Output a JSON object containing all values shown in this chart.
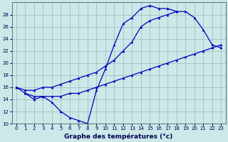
{
  "xlabel": "Graphe des températures (°c)",
  "bg_color": "#cce8e8",
  "line_color": "#0000bb",
  "grid_color": "#99bbbb",
  "ylim": [
    10,
    30
  ],
  "yticks": [
    10,
    12,
    14,
    16,
    18,
    20,
    22,
    24,
    26,
    28
  ],
  "xlim": [
    -0.5,
    23.5
  ],
  "line1_x": [
    0,
    1,
    2,
    3,
    4,
    5,
    6,
    7,
    8,
    9,
    10,
    11,
    12,
    13,
    14,
    15,
    16,
    17,
    18
  ],
  "line1_y": [
    16.0,
    15.0,
    14.0,
    14.5,
    13.5,
    12.0,
    11.0,
    10.5,
    10.0,
    15.5,
    19.0,
    23.0,
    26.5,
    27.5,
    29.0,
    29.5,
    29.0,
    29.0,
    28.5
  ],
  "line2_x": [
    0,
    1,
    2,
    3,
    4,
    5,
    6,
    7,
    8,
    9,
    10,
    11,
    12,
    13,
    14,
    15,
    16,
    17,
    18,
    19,
    20,
    21,
    22,
    23
  ],
  "line2_y": [
    16.0,
    15.5,
    15.5,
    16.0,
    16.0,
    16.5,
    17.0,
    17.5,
    18.0,
    18.5,
    19.5,
    20.5,
    22.0,
    23.5,
    26.0,
    27.0,
    27.5,
    28.0,
    28.5,
    28.5,
    27.5,
    25.5,
    23.0,
    22.5
  ],
  "line3_x": [
    1,
    2,
    3,
    4,
    5,
    6,
    7,
    8,
    9,
    10,
    11,
    12,
    13,
    14,
    15,
    16,
    17,
    18,
    19,
    20,
    21,
    22,
    23
  ],
  "line3_y": [
    15.0,
    14.5,
    14.5,
    14.5,
    14.5,
    15.0,
    15.0,
    15.5,
    16.0,
    16.5,
    17.0,
    17.5,
    18.0,
    18.5,
    19.0,
    19.5,
    20.0,
    20.5,
    21.0,
    21.5,
    22.0,
    22.5,
    23.0
  ]
}
